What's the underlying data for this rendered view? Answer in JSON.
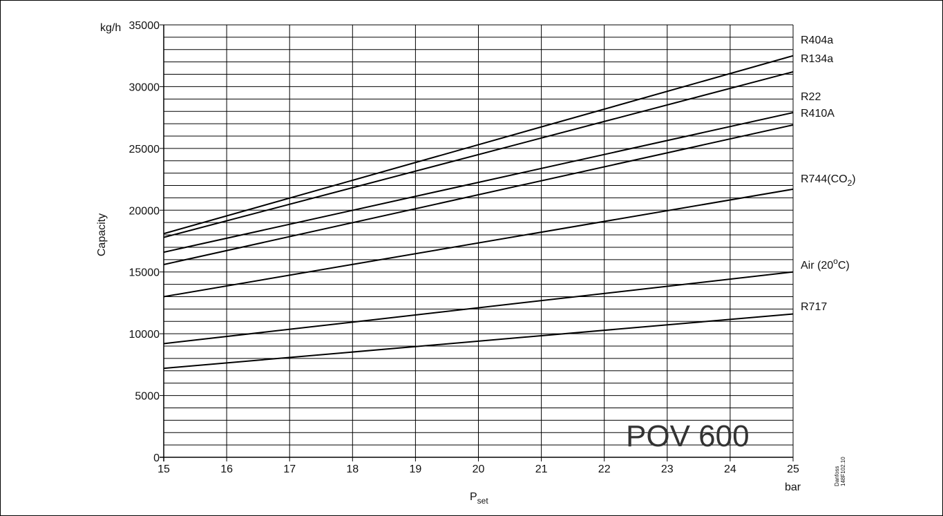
{
  "chart_data": {
    "type": "line",
    "title": "POV 600",
    "xlabel": "P",
    "xlabel_sub": "set",
    "xunit": "bar",
    "ylabel": "Capacity",
    "yunit": "kg/h",
    "xlim": [
      15,
      25
    ],
    "ylim": [
      0,
      35000
    ],
    "x_ticks": [
      "15",
      "16",
      "17",
      "18",
      "19",
      "20",
      "21",
      "22",
      "23",
      "24",
      "25"
    ],
    "y_ticks": [
      "0",
      "5000",
      "10000",
      "15000",
      "20000",
      "25000",
      "30000",
      "35000"
    ],
    "grid": true,
    "series": [
      {
        "name": "R404a",
        "x": [
          15,
          25
        ],
        "y": [
          18100,
          32500
        ]
      },
      {
        "name": "R134a",
        "x": [
          15,
          25
        ],
        "y": [
          17800,
          31200
        ]
      },
      {
        "name": "R22",
        "x": [
          15,
          25
        ],
        "y": [
          16600,
          27900
        ]
      },
      {
        "name": "R410A",
        "x": [
          15,
          25
        ],
        "y": [
          15600,
          26900
        ]
      },
      {
        "name": "R744(CO2)",
        "x": [
          15,
          25
        ],
        "y": [
          13000,
          21700
        ]
      },
      {
        "name": "Air (20°C)",
        "x": [
          15,
          25
        ],
        "y": [
          9200,
          15000
        ]
      },
      {
        "name": "R717",
        "x": [
          15,
          25
        ],
        "y": [
          7200,
          11600
        ]
      }
    ],
    "series_labels": [
      {
        "text": "R404a"
      },
      {
        "text": "R134a"
      },
      {
        "text": "R22"
      },
      {
        "text": "R410A"
      },
      {
        "text": "R744(CO",
        "sub": "2",
        "tail": ")"
      },
      {
        "text": "Air (20",
        "sup": "o",
        "tail": "C)"
      },
      {
        "text": "R717"
      }
    ],
    "code_lines": [
      "Danfoss",
      "148F102.10"
    ]
  }
}
